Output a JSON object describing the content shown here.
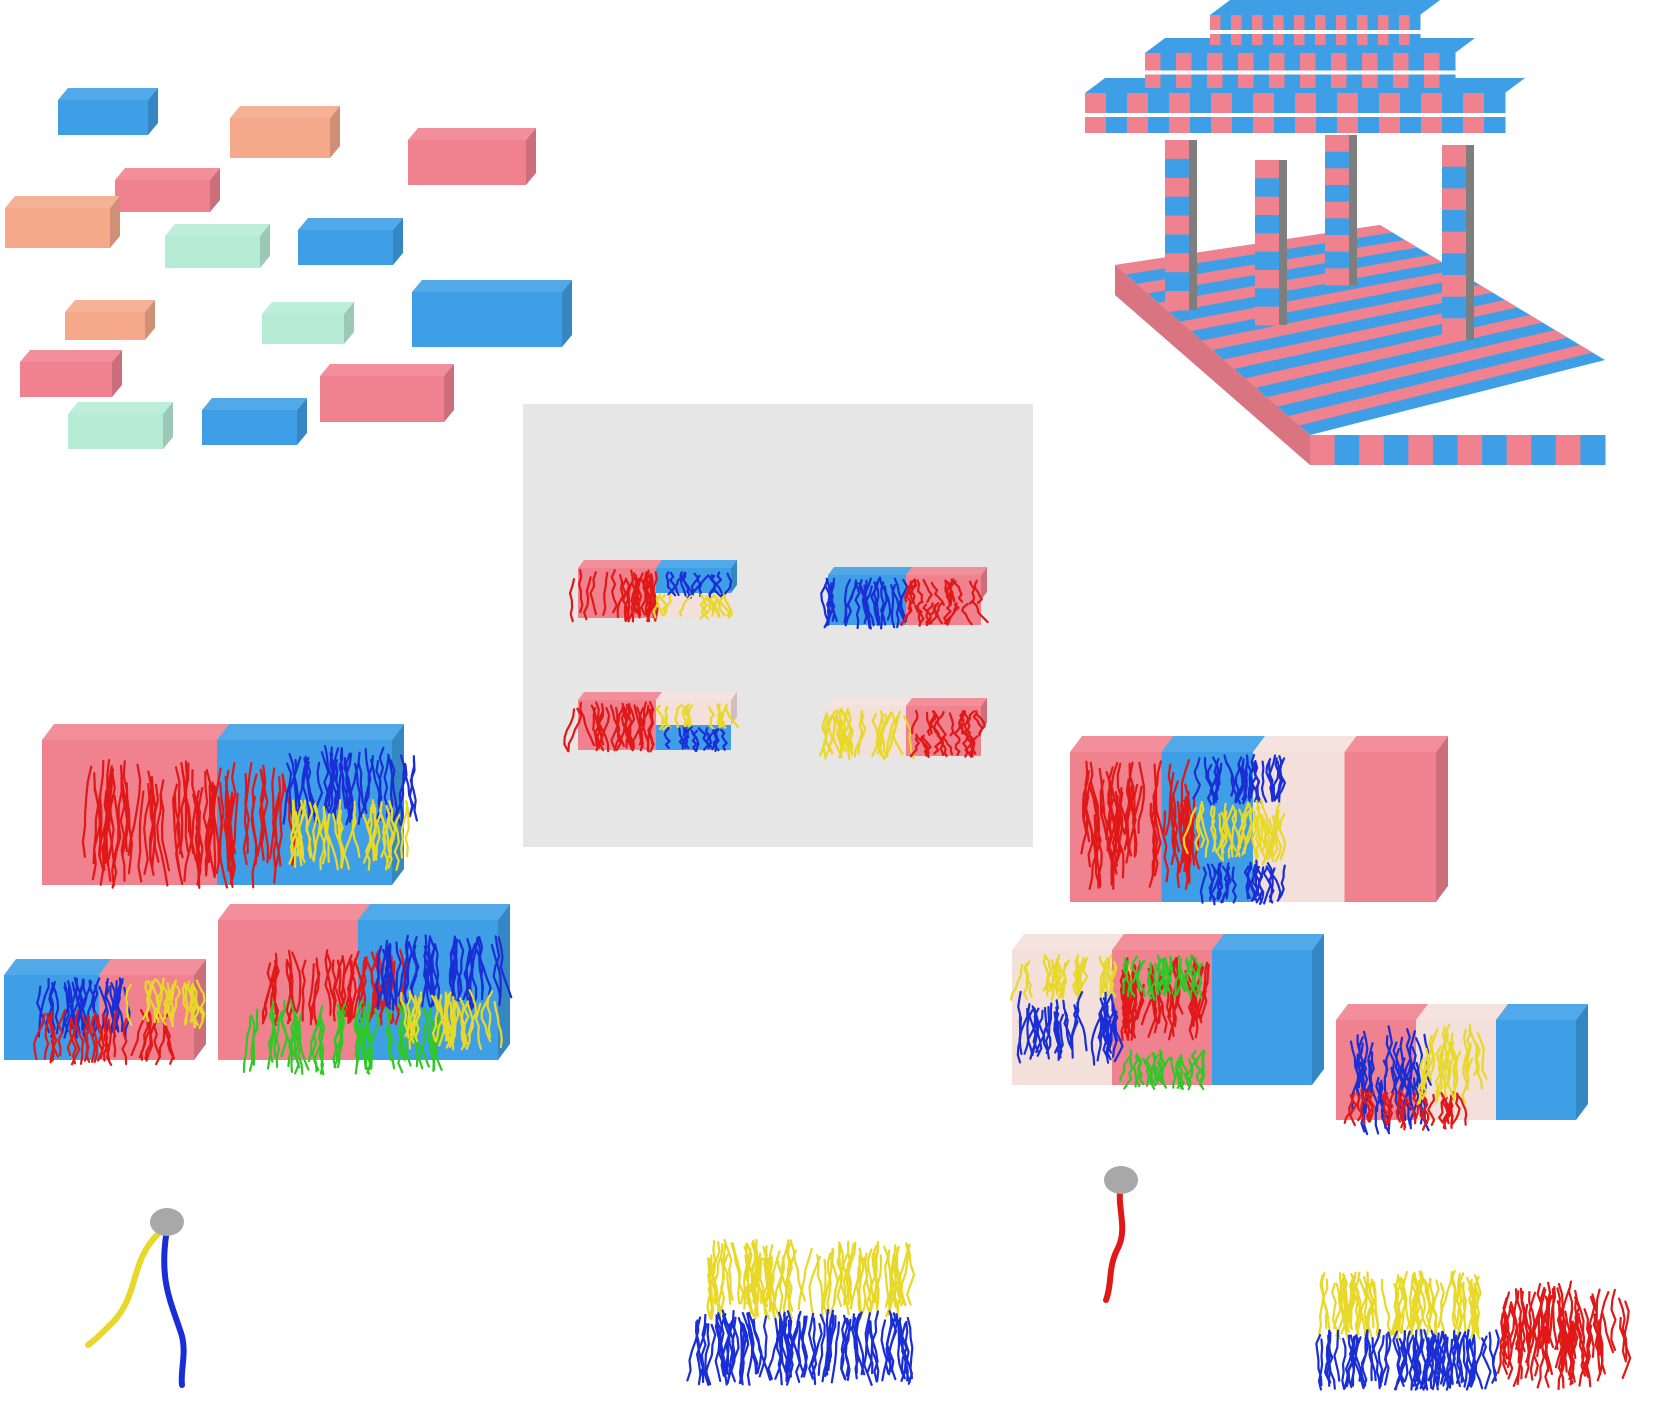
{
  "palette": {
    "pink": "#f0828f",
    "blue": "#3e9fe6",
    "peach": "#f5a98a",
    "mint": "#b6ecd6",
    "cream": "#f3e0da",
    "gray": "#7e7e7e",
    "chain_red": "#e01818",
    "chain_blue": "#1a2ed6",
    "chain_yellow": "#e8d82a",
    "chain_green": "#2fc826",
    "panel_gray": "#e6e6e6",
    "head_gray": "#a8a8a8"
  },
  "panels": {
    "building_blocks": {},
    "assembled_structure": {},
    "center_panel": {},
    "left_prisms": {},
    "right_prisms": {},
    "molecules": {}
  }
}
